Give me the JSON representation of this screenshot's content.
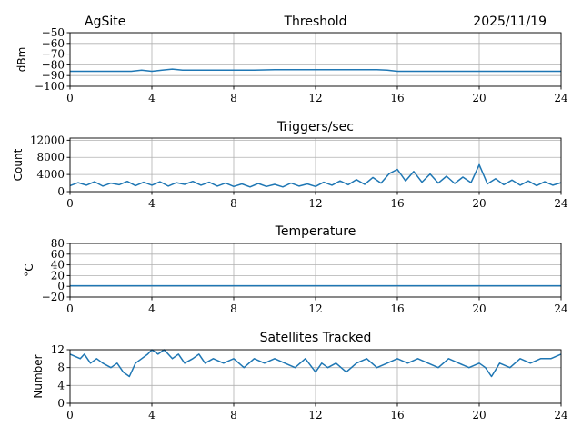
{
  "header": {
    "site": "AgSite",
    "date": "2025/11/19"
  },
  "colors": {
    "series": "#1f77b4",
    "grid": "#b0b0b0",
    "axis": "#000000"
  },
  "chart_data": [
    {
      "type": "line",
      "title": "Threshold",
      "ylabel": "dBm",
      "xlim": [
        0,
        24
      ],
      "ylim": [
        -100,
        -50
      ],
      "xticks": [
        0,
        4,
        8,
        12,
        16,
        20,
        24
      ],
      "yticks": [
        -100,
        -90,
        -80,
        -70,
        -60,
        -50
      ],
      "grid": true,
      "series": [
        {
          "x": [
            0,
            1,
            2,
            3,
            3.5,
            4,
            4.5,
            5,
            5.5,
            6,
            7,
            8,
            9,
            10,
            11,
            12,
            13,
            14,
            15,
            15.5,
            16,
            17,
            18,
            19,
            20,
            21,
            22,
            23,
            24
          ],
          "values": [
            -86,
            -86,
            -86,
            -86,
            -85,
            -86,
            -85,
            -84,
            -85,
            -85,
            -85,
            -85,
            -85,
            -84.5,
            -84.5,
            -84.5,
            -84.5,
            -84.5,
            -84.5,
            -85,
            -86,
            -86,
            -86,
            -86,
            -86,
            -86,
            -86,
            -86,
            -86
          ]
        }
      ]
    },
    {
      "type": "line",
      "title": "Triggers/sec",
      "ylabel": "Count",
      "xlim": [
        0,
        24
      ],
      "ylim": [
        0,
        12500
      ],
      "xticks": [
        0,
        4,
        8,
        12,
        16,
        20,
        24
      ],
      "yticks": [
        0,
        4000,
        8000,
        12000
      ],
      "grid": true,
      "series": [
        {
          "x": [
            0,
            0.4,
            0.8,
            1.2,
            1.6,
            2,
            2.4,
            2.8,
            3.2,
            3.6,
            4,
            4.4,
            4.8,
            5.2,
            5.6,
            6,
            6.4,
            6.8,
            7.2,
            7.6,
            8,
            8.4,
            8.8,
            9.2,
            9.6,
            10,
            10.4,
            10.8,
            11.2,
            11.6,
            12,
            12.4,
            12.8,
            13.2,
            13.6,
            14,
            14.4,
            14.8,
            15.2,
            15.6,
            16,
            16.4,
            16.8,
            17.2,
            17.6,
            18,
            18.4,
            18.8,
            19.2,
            19.6,
            20,
            20.4,
            20.8,
            21.2,
            21.6,
            22,
            22.4,
            22.8,
            23.2,
            23.6,
            24
          ],
          "values": [
            1400,
            2100,
            1500,
            2300,
            1300,
            2000,
            1600,
            2400,
            1400,
            2200,
            1500,
            2300,
            1300,
            2100,
            1700,
            2400,
            1500,
            2200,
            1300,
            2000,
            1200,
            1800,
            1100,
            1900,
            1200,
            1700,
            1100,
            2000,
            1300,
            1800,
            1200,
            2200,
            1500,
            2500,
            1600,
            2800,
            1700,
            3300,
            2000,
            4200,
            5200,
            2500,
            4700,
            2200,
            4100,
            2000,
            3600,
            1900,
            3400,
            2100,
            6300,
            1800,
            3000,
            1600,
            2700,
            1500,
            2500,
            1400,
            2300,
            1500,
            2100
          ]
        }
      ]
    },
    {
      "type": "line",
      "title": "Temperature",
      "ylabel": "°C",
      "xlim": [
        0,
        24
      ],
      "ylim": [
        -20,
        80
      ],
      "xticks": [
        0,
        4,
        8,
        12,
        16,
        20,
        24
      ],
      "yticks": [
        -20,
        0,
        20,
        40,
        60,
        80
      ],
      "grid": true,
      "series": [
        {
          "x": [
            0,
            24
          ],
          "values": [
            1,
            1
          ]
        }
      ]
    },
    {
      "type": "line",
      "title": "Satellites Tracked",
      "ylabel": "Number",
      "xlim": [
        0,
        24
      ],
      "ylim": [
        0,
        12
      ],
      "xticks": [
        0,
        4,
        8,
        12,
        16,
        20,
        24
      ],
      "yticks": [
        0,
        4,
        8,
        12
      ],
      "grid": true,
      "series": [
        {
          "x": [
            0,
            0.5,
            0.7,
            1,
            1.3,
            1.6,
            2,
            2.3,
            2.6,
            2.9,
            3.2,
            3.5,
            3.8,
            4,
            4.3,
            4.6,
            5,
            5.3,
            5.6,
            6,
            6.3,
            6.6,
            7,
            7.5,
            8,
            8.5,
            9,
            9.5,
            10,
            10.5,
            11,
            11.5,
            12,
            12.3,
            12.6,
            13,
            13.5,
            14,
            14.5,
            15,
            15.5,
            16,
            16.5,
            17,
            17.5,
            18,
            18.5,
            19,
            19.5,
            20,
            20.3,
            20.6,
            21,
            21.5,
            22,
            22.5,
            23,
            23.5,
            24
          ],
          "values": [
            11,
            10,
            11,
            9,
            10,
            9,
            8,
            9,
            7,
            6,
            9,
            10,
            11,
            12,
            11,
            12,
            10,
            11,
            9,
            10,
            11,
            9,
            10,
            9,
            10,
            8,
            10,
            9,
            10,
            9,
            8,
            10,
            7,
            9,
            8,
            9,
            7,
            9,
            10,
            8,
            9,
            10,
            9,
            10,
            9,
            8,
            10,
            9,
            8,
            9,
            8,
            6,
            9,
            8,
            10,
            9,
            10,
            10,
            11
          ]
        }
      ]
    }
  ]
}
